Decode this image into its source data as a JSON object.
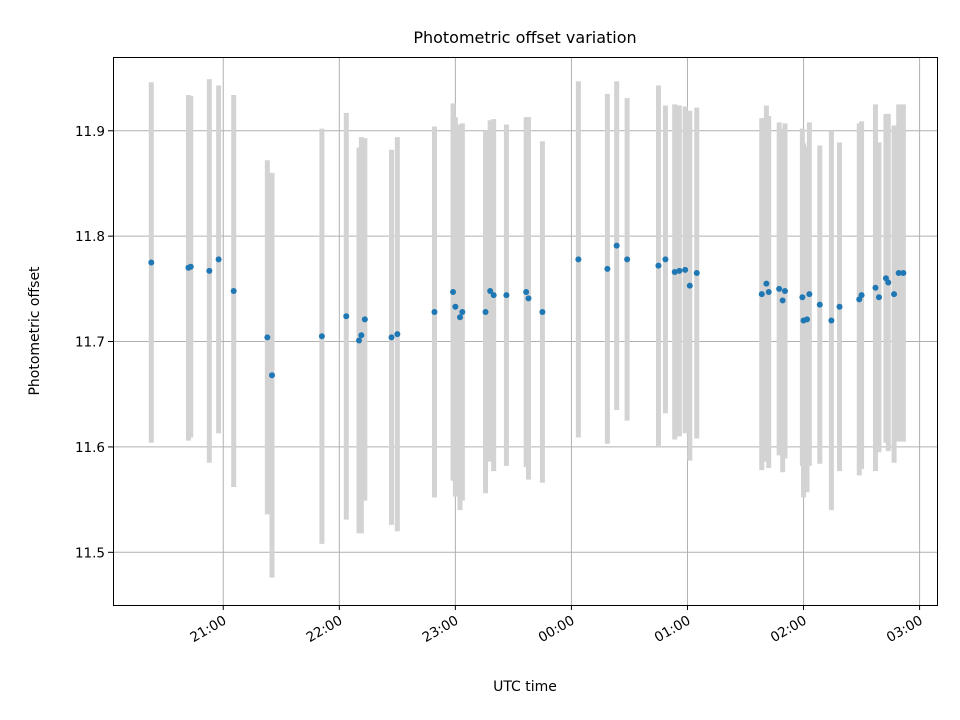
{
  "chart_data": {
    "type": "scatter",
    "title": "Photometric offset variation",
    "xlabel": "UTC time",
    "ylabel": "Photometric offset",
    "x_unit": "UTC hours (times after midnight continue past 24)",
    "xlim": [
      20.05,
      27.15
    ],
    "ylim": [
      11.45,
      11.97
    ],
    "xticks": [
      {
        "value": 21,
        "label": "21:00"
      },
      {
        "value": 22,
        "label": "22:00"
      },
      {
        "value": 23,
        "label": "23:00"
      },
      {
        "value": 24,
        "label": "00:00"
      },
      {
        "value": 25,
        "label": "01:00"
      },
      {
        "value": 26,
        "label": "02:00"
      },
      {
        "value": 27,
        "label": "03:00"
      }
    ],
    "yticks": [
      {
        "value": 11.5,
        "label": "11.5"
      },
      {
        "value": 11.6,
        "label": "11.6"
      },
      {
        "value": 11.7,
        "label": "11.7"
      },
      {
        "value": 11.8,
        "label": "11.8"
      },
      {
        "value": 11.9,
        "label": "11.9"
      }
    ],
    "grid": true,
    "point_color": "#1f77b4",
    "errorbar_color": "#d3d3d3",
    "series": [
      {
        "x": [
          20.38,
          20.7,
          20.72,
          20.88,
          20.96,
          21.09,
          21.38,
          21.42,
          21.85,
          22.06,
          22.17,
          22.19,
          22.22,
          22.45,
          22.5,
          22.82,
          22.98,
          23.0,
          23.04,
          23.06,
          23.26,
          23.3,
          23.33,
          23.44,
          23.61,
          23.63,
          23.75,
          24.06,
          24.31,
          24.39,
          24.48,
          24.75,
          24.81,
          24.89,
          24.93,
          24.98,
          25.02,
          25.08,
          25.64,
          25.68,
          25.7,
          25.79,
          25.82,
          25.84,
          25.99,
          26.0,
          26.03,
          26.05,
          26.14,
          26.24,
          26.31,
          26.48,
          26.5,
          26.62,
          26.65,
          26.71,
          26.73,
          26.78,
          26.82,
          26.86
        ],
        "y": [
          11.775,
          11.77,
          11.771,
          11.767,
          11.778,
          11.748,
          11.704,
          11.668,
          11.705,
          11.724,
          11.701,
          11.706,
          11.721,
          11.704,
          11.707,
          11.728,
          11.747,
          11.733,
          11.723,
          11.728,
          11.728,
          11.748,
          11.744,
          11.744,
          11.747,
          11.741,
          11.728,
          11.778,
          11.769,
          11.791,
          11.778,
          11.772,
          11.778,
          11.766,
          11.767,
          11.768,
          11.753,
          11.765,
          11.745,
          11.755,
          11.747,
          11.75,
          11.739,
          11.748,
          11.742,
          11.72,
          11.721,
          11.745,
          11.735,
          11.72,
          11.733,
          11.74,
          11.744,
          11.751,
          11.742,
          11.76,
          11.756,
          11.745,
          11.765,
          11.765
        ],
        "yerr": [
          0.171,
          0.164,
          0.162,
          0.182,
          0.165,
          0.186,
          0.168,
          0.192,
          0.197,
          0.193,
          0.183,
          0.188,
          0.172,
          0.178,
          0.187,
          0.176,
          0.179,
          0.18,
          0.183,
          0.179,
          0.172,
          0.162,
          0.167,
          0.162,
          0.166,
          0.172,
          0.162,
          0.169,
          0.166,
          0.156,
          0.153,
          0.171,
          0.146,
          0.159,
          0.157,
          0.155,
          0.166,
          0.157,
          0.167,
          0.169,
          0.167,
          0.158,
          0.163,
          0.159,
          0.16,
          0.168,
          0.164,
          0.163,
          0.151,
          0.18,
          0.156,
          0.167,
          0.165,
          0.174,
          0.147,
          0.156,
          0.16,
          0.16,
          0.16,
          0.16
        ]
      }
    ]
  }
}
